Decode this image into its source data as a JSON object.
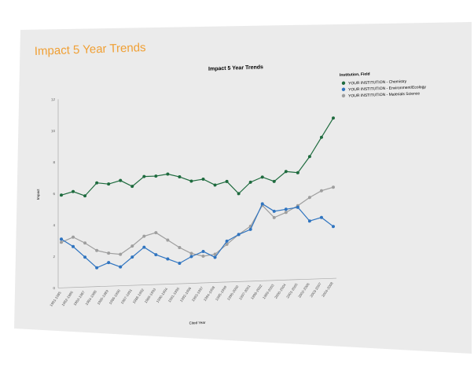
{
  "page": {
    "title": "Impact 5 Year Trends",
    "title_color": "#f0a035",
    "panel_color": "#ebebeb"
  },
  "chart_data": {
    "type": "line",
    "title": "Impact 5 Year Trends",
    "xlabel": "Cited Year",
    "ylabel": "Impact",
    "ylim": [
      0,
      12
    ],
    "yticks": [
      0,
      2,
      4,
      6,
      8,
      10,
      12
    ],
    "grid": false,
    "legend_placement": "top-right",
    "legend_title": "Institution, Field",
    "categories": [
      "1981-1985",
      "1982-1986",
      "1983-1987",
      "1984-1988",
      "1985-1989",
      "1986-1990",
      "1987-1991",
      "1988-1992",
      "1989-1993",
      "1990-1994",
      "1991-1995",
      "1992-1996",
      "1993-1997",
      "1994-1998",
      "1995-1999",
      "1996-2000",
      "1997-2001",
      "1998-2002",
      "1999-2003",
      "2000-2004",
      "2001-2005",
      "2002-2006",
      "2003-2007",
      "2004-2008"
    ],
    "series": [
      {
        "name": "YOUR INSTITUTION - Chemistry",
        "color": "#1e6b3e",
        "values": [
          5.9,
          6.1,
          5.8,
          6.6,
          6.5,
          6.7,
          6.3,
          6.9,
          6.9,
          7.0,
          6.8,
          6.5,
          6.6,
          6.2,
          6.4,
          5.6,
          6.3,
          6.6,
          6.3,
          6.9,
          6.8,
          7.8,
          9.0,
          10.2
        ]
      },
      {
        "name": "YOUR INSTITUTION - Environment/Ecology",
        "color": "#2f74c0",
        "values": [
          3.1,
          2.6,
          1.9,
          1.2,
          1.5,
          1.2,
          1.8,
          2.4,
          1.9,
          1.6,
          1.3,
          1.7,
          2.0,
          1.6,
          2.6,
          3.0,
          3.3,
          4.9,
          4.4,
          4.5,
          4.6,
          3.7,
          3.9,
          3.3
        ]
      },
      {
        "name": "YOUR INSTITUTION - Materials Science",
        "color": "#9e9e9e",
        "values": [
          2.9,
          3.2,
          2.8,
          2.3,
          2.1,
          2.0,
          2.5,
          3.1,
          3.3,
          2.8,
          2.3,
          1.9,
          1.7,
          1.8,
          2.4,
          3.0,
          3.5,
          4.8,
          4.0,
          4.3,
          4.7,
          5.2,
          5.6,
          5.8
        ]
      }
    ]
  }
}
